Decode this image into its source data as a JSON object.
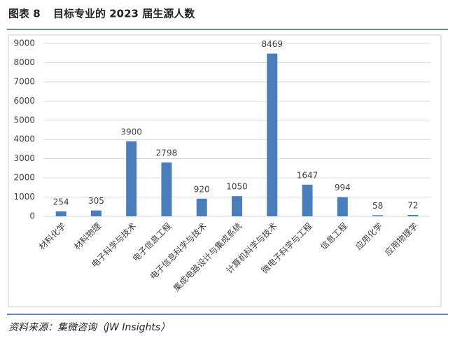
{
  "chart_data": {
    "type": "bar",
    "figure_label": "图表 8",
    "title": "目标专业的 2023 届生源人数",
    "categories": [
      "材料化学",
      "材料物理",
      "电子科学与技术",
      "电子信息工程",
      "电子信息科学与技术",
      "集成电路设计与集成系统",
      "计算机科学与技术",
      "微电子科学与工程",
      "信息工程",
      "应用化学",
      "应用物理学"
    ],
    "values": [
      254,
      305,
      3900,
      2798,
      920,
      1050,
      8469,
      1647,
      994,
      58,
      72
    ],
    "color": "#4a7ebb",
    "ylim": [
      0,
      9000
    ],
    "yticks": [
      0,
      1000,
      2000,
      3000,
      4000,
      5000,
      6000,
      7000,
      8000,
      9000
    ],
    "grid": true,
    "source": "资料来源：集微咨询（JW Insights）"
  }
}
